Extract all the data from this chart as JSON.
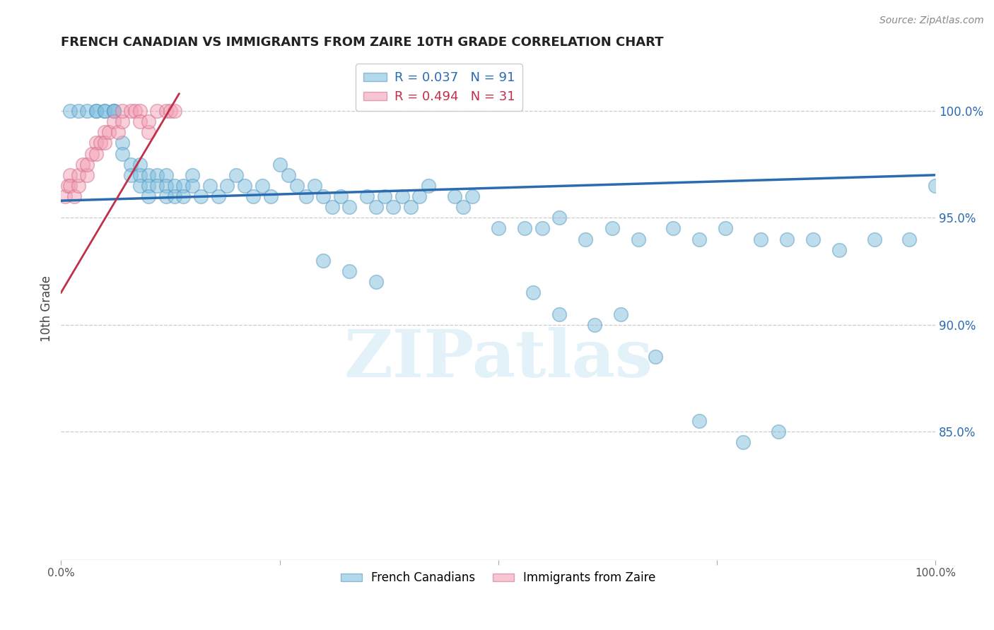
{
  "title": "FRENCH CANADIAN VS IMMIGRANTS FROM ZAIRE 10TH GRADE CORRELATION CHART",
  "source": "Source: ZipAtlas.com",
  "ylabel": "10th Grade",
  "blue_R": 0.037,
  "blue_N": 91,
  "pink_R": 0.494,
  "pink_N": 31,
  "blue_label": "French Canadians",
  "pink_label": "Immigrants from Zaire",
  "blue_color": "#7fbfdf",
  "pink_color": "#f4a0b5",
  "blue_edge_color": "#5a9abf",
  "pink_edge_color": "#d07090",
  "blue_line_color": "#2b6cb0",
  "pink_line_color": "#c0304a",
  "background_color": "#ffffff",
  "watermark": "ZIPatlas",
  "right_yticks": [
    100.0,
    95.0,
    90.0,
    85.0
  ],
  "ylim_min": 79.0,
  "ylim_max": 102.5,
  "xlim_min": 0.0,
  "xlim_max": 1.0,
  "blue_line_x": [
    0.0,
    1.0
  ],
  "blue_line_y": [
    95.8,
    97.0
  ],
  "pink_line_x": [
    0.0,
    0.135
  ],
  "pink_line_y": [
    91.5,
    100.8
  ],
  "blue_x": [
    0.01,
    0.02,
    0.03,
    0.04,
    0.04,
    0.05,
    0.05,
    0.06,
    0.06,
    0.06,
    0.07,
    0.07,
    0.08,
    0.08,
    0.09,
    0.09,
    0.09,
    0.1,
    0.1,
    0.1,
    0.11,
    0.11,
    0.12,
    0.12,
    0.12,
    0.13,
    0.13,
    0.14,
    0.14,
    0.15,
    0.15,
    0.16,
    0.17,
    0.18,
    0.19,
    0.2,
    0.21,
    0.22,
    0.23,
    0.24,
    0.25,
    0.26,
    0.27,
    0.28,
    0.29,
    0.3,
    0.31,
    0.32,
    0.33,
    0.35,
    0.36,
    0.37,
    0.38,
    0.39,
    0.4,
    0.41,
    0.42,
    0.45,
    0.46,
    0.47,
    0.5,
    0.53,
    0.55,
    0.57,
    0.6,
    0.63,
    0.66,
    0.7,
    0.73,
    0.76,
    0.8,
    0.83,
    0.86,
    0.89,
    0.93,
    0.97,
    1.0,
    0.3,
    0.33,
    0.36,
    0.54,
    0.57,
    0.61,
    0.64,
    0.68,
    0.73,
    0.78,
    0.82
  ],
  "blue_y": [
    100.0,
    100.0,
    100.0,
    100.0,
    100.0,
    100.0,
    100.0,
    100.0,
    100.0,
    100.0,
    98.5,
    98.0,
    97.5,
    97.0,
    97.5,
    97.0,
    96.5,
    97.0,
    96.5,
    96.0,
    97.0,
    96.5,
    97.0,
    96.5,
    96.0,
    96.5,
    96.0,
    96.5,
    96.0,
    97.0,
    96.5,
    96.0,
    96.5,
    96.0,
    96.5,
    97.0,
    96.5,
    96.0,
    96.5,
    96.0,
    97.5,
    97.0,
    96.5,
    96.0,
    96.5,
    96.0,
    95.5,
    96.0,
    95.5,
    96.0,
    95.5,
    96.0,
    95.5,
    96.0,
    95.5,
    96.0,
    96.5,
    96.0,
    95.5,
    96.0,
    94.5,
    94.5,
    94.5,
    95.0,
    94.0,
    94.5,
    94.0,
    94.5,
    94.0,
    94.5,
    94.0,
    94.0,
    94.0,
    93.5,
    94.0,
    94.0,
    96.5,
    93.0,
    92.5,
    92.0,
    91.5,
    90.5,
    90.0,
    90.5,
    88.5,
    85.5,
    84.5,
    85.0
  ],
  "pink_x": [
    0.005,
    0.008,
    0.01,
    0.01,
    0.015,
    0.02,
    0.02,
    0.025,
    0.03,
    0.03,
    0.035,
    0.04,
    0.04,
    0.045,
    0.05,
    0.05,
    0.055,
    0.06,
    0.065,
    0.07,
    0.07,
    0.08,
    0.085,
    0.09,
    0.09,
    0.1,
    0.1,
    0.11,
    0.12,
    0.125,
    0.13
  ],
  "pink_y": [
    96.0,
    96.5,
    97.0,
    96.5,
    96.0,
    96.5,
    97.0,
    97.5,
    97.0,
    97.5,
    98.0,
    98.5,
    98.0,
    98.5,
    99.0,
    98.5,
    99.0,
    99.5,
    99.0,
    99.5,
    100.0,
    100.0,
    100.0,
    100.0,
    99.5,
    99.0,
    99.5,
    100.0,
    100.0,
    100.0,
    100.0
  ]
}
